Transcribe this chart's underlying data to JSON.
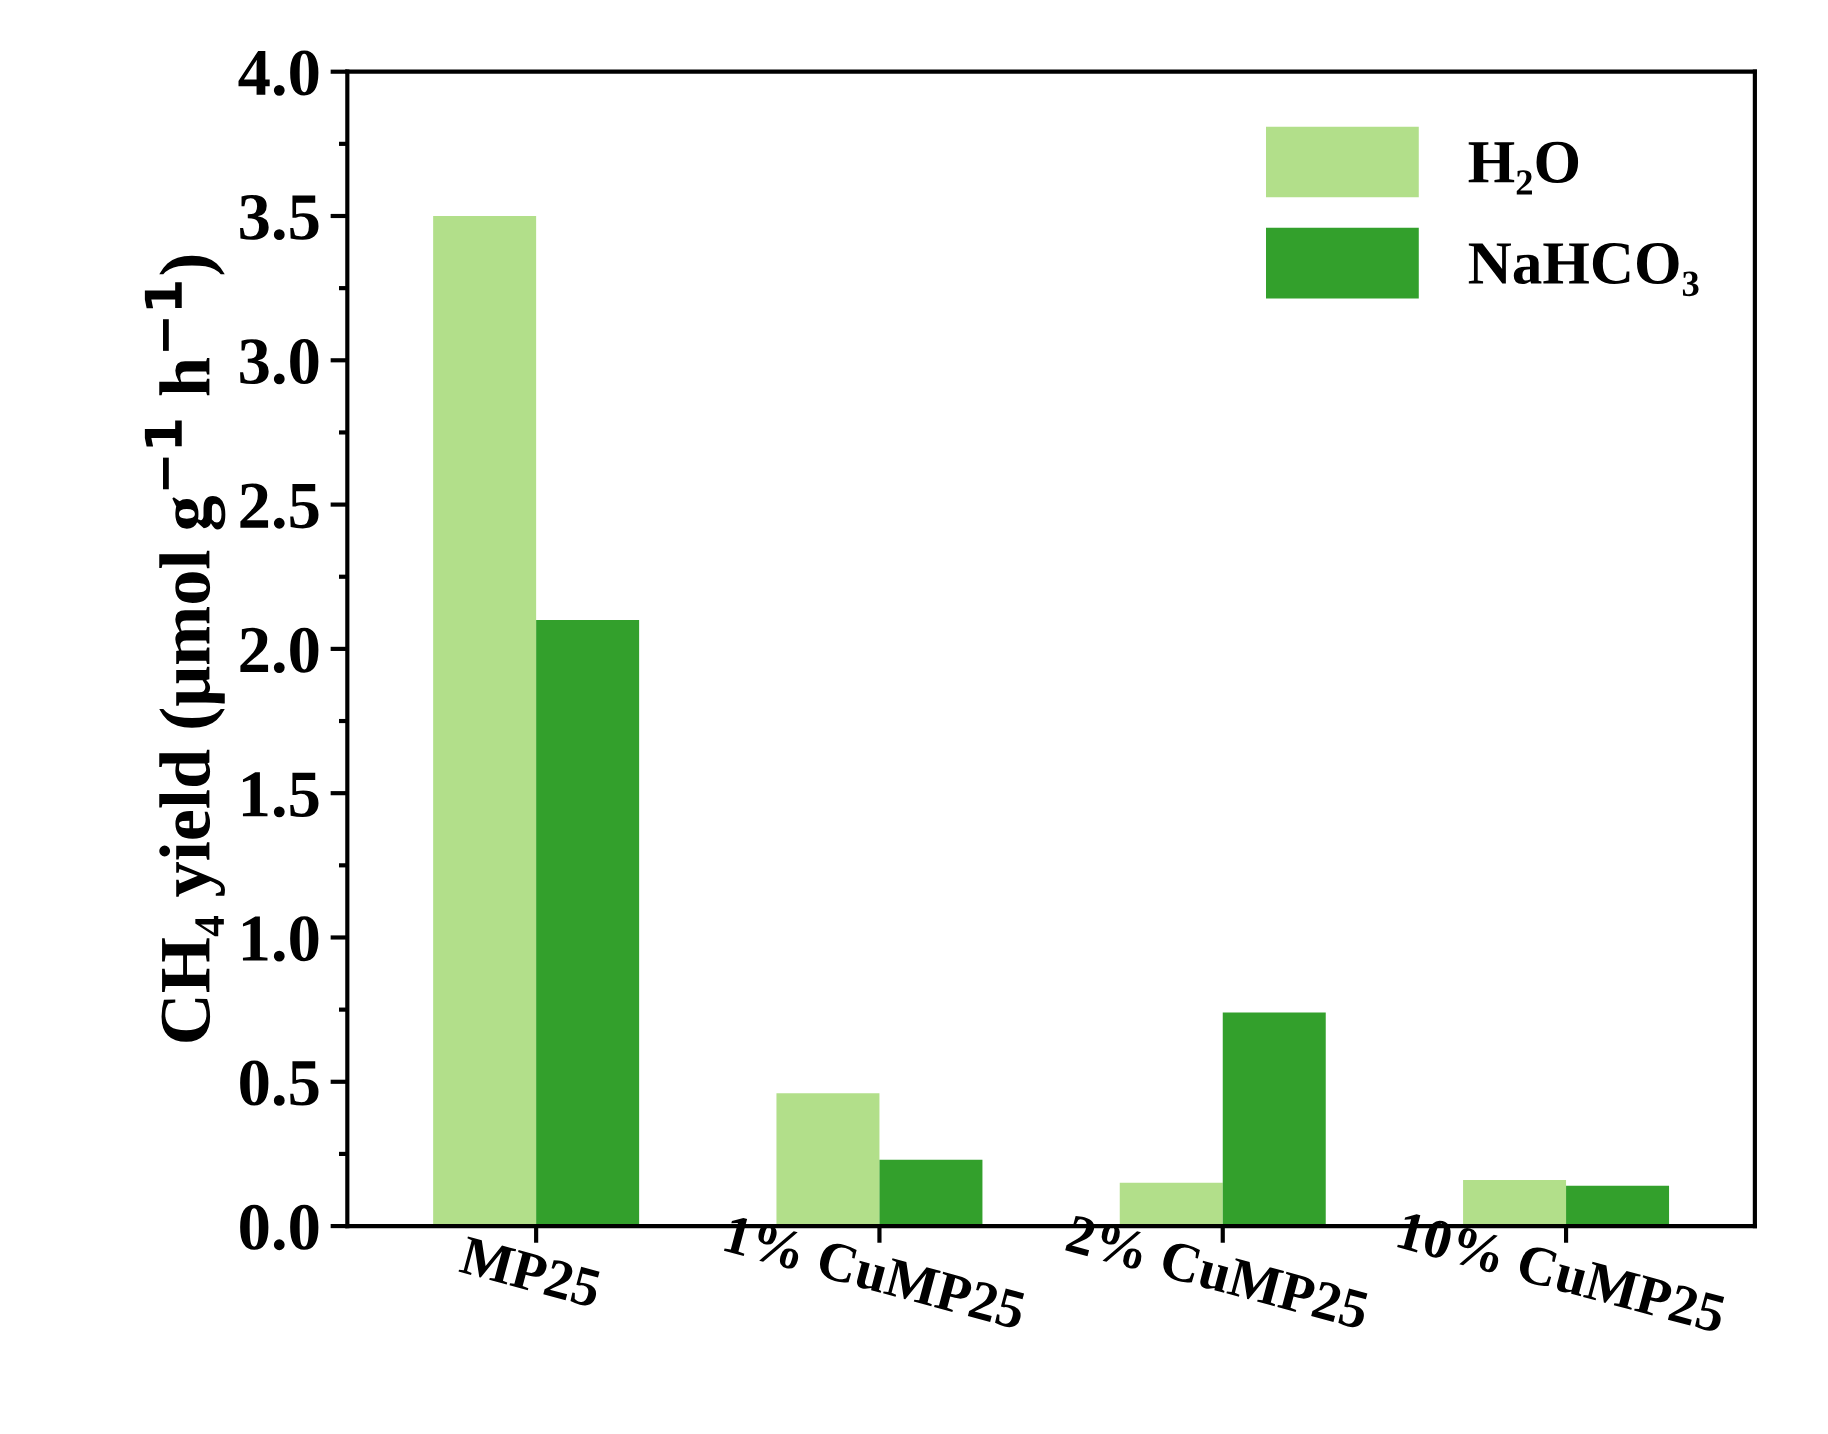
{
  "chart_data": {
    "type": "bar",
    "ylabel": "CH₄ yield (μmol g$^{−1}$ h$^{−1}$)",
    "categories": [
      "MP25",
      "1% CuMP25",
      "2% CuMP25",
      "10% CuMP25"
    ],
    "series": [
      {
        "name": "H₂O",
        "color": "#b2df8a",
        "values": [
          3.5,
          0.46,
          0.15,
          0.16
        ]
      },
      {
        "name": "NaHCO₃",
        "color": "#33a02c",
        "values": [
          2.1,
          0.23,
          0.74,
          0.14
        ]
      }
    ],
    "ylim": [
      0,
      4
    ],
    "yticks": [
      {
        "value": 0,
        "label": "0.0"
      },
      {
        "value": 0.5,
        "label": "0.5"
      },
      {
        "value": 1,
        "label": "1.0"
      },
      {
        "value": 1.5,
        "label": "1.5"
      },
      {
        "value": 2,
        "label": "2.0"
      },
      {
        "value": 2.5,
        "label": "2.5"
      },
      {
        "value": 3,
        "label": "3.0"
      },
      {
        "value": 3.5,
        "label": "3.5"
      },
      {
        "value": 4,
        "label": "4.0"
      }
    ],
    "grid": false,
    "legend": "top right"
  }
}
